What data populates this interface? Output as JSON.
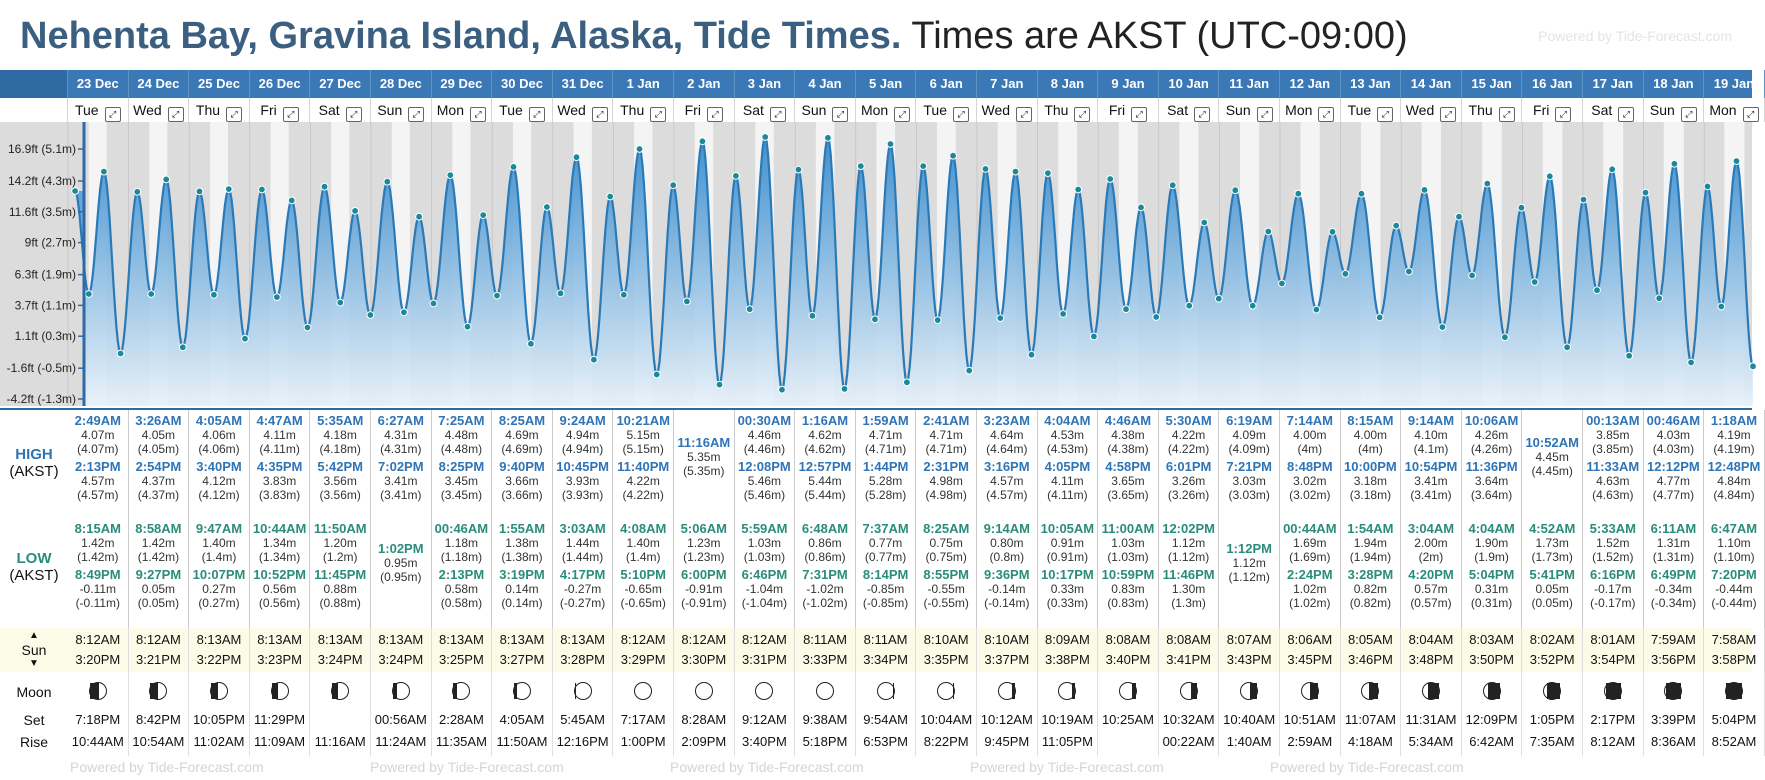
{
  "header": {
    "location": "Nehenta Bay, Gravina Island, Alaska, Tide Times.",
    "timezone": "Times are AKST (UTC-09:00)",
    "watermark": "Powered by Tide-Forecast.com"
  },
  "chart": {
    "y_labels": [
      "16.9ft (5.1m)",
      "14.2ft (4.3m)",
      "11.6ft (3.5m)",
      "9ft (2.7m)",
      "6.3ft (1.9m)",
      "3.7ft (1.1m)",
      "1.1ft (0.3m)",
      "-1.6ft (-0.5m)",
      "-4.2ft (-1.3m)"
    ],
    "y_values": [
      16.9,
      14.2,
      11.6,
      9,
      6.3,
      3.7,
      1.1,
      -1.6,
      -4.2
    ],
    "colors": {
      "fill_top": "#2e86cc",
      "fill_bottom": "#e8f2fa",
      "line": "#2a7ab8",
      "dot": "#1a8a99",
      "night": "#dcdcdc",
      "day": "#f4f4f4"
    }
  },
  "labels": {
    "high": "HIGH",
    "high_tz": "(AKST)",
    "low": "LOW",
    "low_tz": "(AKST)",
    "sun": "Sun",
    "moon": "Moon",
    "set": "Set",
    "rise": "Rise",
    "sun_up_icon": "▲",
    "sun_down_icon": "▼"
  },
  "days": [
    {
      "date": "23 Dec",
      "dow": "Tue",
      "high": [
        [
          "2:49AM",
          "4.07m",
          "(4.07m)"
        ],
        [
          "2:13PM",
          "4.57m",
          "(4.57m)"
        ]
      ],
      "low": [
        [
          "8:15AM",
          "1.42m",
          "(1.42m)"
        ],
        [
          "8:49PM",
          "-0.11m",
          "(-0.11m)"
        ]
      ],
      "sunrise": "8:12AM",
      "sunset": "3:20PM",
      "moonset": "7:18PM",
      "moonrise": "10:44AM",
      "phase": 0.45
    },
    {
      "date": "24 Dec",
      "dow": "Wed",
      "high": [
        [
          "3:26AM",
          "4.05m",
          "(4.05m)"
        ],
        [
          "2:54PM",
          "4.37m",
          "(4.37m)"
        ]
      ],
      "low": [
        [
          "8:58AM",
          "1.42m",
          "(1.42m)"
        ],
        [
          "9:27PM",
          "0.05m",
          "(0.05m)"
        ]
      ],
      "sunrise": "8:12AM",
      "sunset": "3:21PM",
      "moonset": "8:42PM",
      "moonrise": "10:54AM",
      "phase": 0.5
    },
    {
      "date": "25 Dec",
      "dow": "Thu",
      "high": [
        [
          "4:05AM",
          "4.06m",
          "(4.06m)"
        ],
        [
          "3:40PM",
          "4.12m",
          "(4.12m)"
        ]
      ],
      "low": [
        [
          "9:47AM",
          "1.40m",
          "(1.4m)"
        ],
        [
          "10:07PM",
          "0.27m",
          "(0.27m)"
        ]
      ],
      "sunrise": "8:13AM",
      "sunset": "3:22PM",
      "moonset": "10:05PM",
      "moonrise": "11:02AM",
      "phase": 0.55
    },
    {
      "date": "26 Dec",
      "dow": "Fri",
      "high": [
        [
          "4:47AM",
          "4.11m",
          "(4.11m)"
        ],
        [
          "4:35PM",
          "3.83m",
          "(3.83m)"
        ]
      ],
      "low": [
        [
          "10:44AM",
          "1.34m",
          "(1.34m)"
        ],
        [
          "10:52PM",
          "0.56m",
          "(0.56m)"
        ]
      ],
      "sunrise": "8:13AM",
      "sunset": "3:23PM",
      "moonset": "11:29PM",
      "moonrise": "11:09AM",
      "phase": 0.6
    },
    {
      "date": "27 Dec",
      "dow": "Sat",
      "high": [
        [
          "5:35AM",
          "4.18m",
          "(4.18m)"
        ],
        [
          "5:42PM",
          "3.56m",
          "(3.56m)"
        ]
      ],
      "low": [
        [
          "11:50AM",
          "1.20m",
          "(1.2m)"
        ],
        [
          "11:45PM",
          "0.88m",
          "(0.88m)"
        ]
      ],
      "sunrise": "8:13AM",
      "sunset": "3:24PM",
      "moonset": "",
      "moonrise": "11:16AM",
      "phase": 0.65
    },
    {
      "date": "28 Dec",
      "dow": "Sun",
      "high": [
        [
          "6:27AM",
          "4.31m",
          "(4.31m)"
        ],
        [
          "7:02PM",
          "3.41m",
          "(3.41m)"
        ]
      ],
      "low": [
        [
          "1:02PM",
          "0.95m",
          "(0.95m)"
        ]
      ],
      "sunrise": "8:13AM",
      "sunset": "3:24PM",
      "moonset": "00:56AM",
      "moonrise": "11:24AM",
      "phase": 0.72
    },
    {
      "date": "29 Dec",
      "dow": "Mon",
      "high": [
        [
          "7:25AM",
          "4.48m",
          "(4.48m)"
        ],
        [
          "8:25PM",
          "3.45m",
          "(3.45m)"
        ]
      ],
      "low": [
        [
          "00:46AM",
          "1.18m",
          "(1.18m)"
        ],
        [
          "2:13PM",
          "0.58m",
          "(0.58m)"
        ]
      ],
      "sunrise": "8:13AM",
      "sunset": "3:25PM",
      "moonset": "2:28AM",
      "moonrise": "11:35AM",
      "phase": 0.78
    },
    {
      "date": "30 Dec",
      "dow": "Tue",
      "high": [
        [
          "8:25AM",
          "4.69m",
          "(4.69m)"
        ],
        [
          "9:40PM",
          "3.66m",
          "(3.66m)"
        ]
      ],
      "low": [
        [
          "1:55AM",
          "1.38m",
          "(1.38m)"
        ],
        [
          "3:19PM",
          "0.14m",
          "(0.14m)"
        ]
      ],
      "sunrise": "8:13AM",
      "sunset": "3:27PM",
      "moonset": "4:05AM",
      "moonrise": "11:50AM",
      "phase": 0.84
    },
    {
      "date": "31 Dec",
      "dow": "Wed",
      "high": [
        [
          "9:24AM",
          "4.94m",
          "(4.94m)"
        ],
        [
          "10:45PM",
          "3.93m",
          "(3.93m)"
        ]
      ],
      "low": [
        [
          "3:03AM",
          "1.44m",
          "(1.44m)"
        ],
        [
          "4:17PM",
          "-0.27m",
          "(-0.27m)"
        ]
      ],
      "sunrise": "8:13AM",
      "sunset": "3:28PM",
      "moonset": "5:45AM",
      "moonrise": "12:16PM",
      "phase": 0.9
    },
    {
      "date": "1 Jan",
      "dow": "Thu",
      "high": [
        [
          "10:21AM",
          "5.15m",
          "(5.15m)"
        ],
        [
          "11:40PM",
          "4.22m",
          "(4.22m)"
        ]
      ],
      "low": [
        [
          "4:08AM",
          "1.40m",
          "(1.4m)"
        ],
        [
          "5:10PM",
          "-0.65m",
          "(-0.65m)"
        ]
      ],
      "sunrise": "8:12AM",
      "sunset": "3:29PM",
      "moonset": "7:17AM",
      "moonrise": "1:00PM",
      "phase": 1
    },
    {
      "date": "2 Jan",
      "dow": "Fri",
      "high": [
        [
          "11:16AM",
          "5.35m",
          "(5.35m)"
        ]
      ],
      "low": [
        [
          "5:06AM",
          "1.23m",
          "(1.23m)"
        ],
        [
          "6:00PM",
          "-0.91m",
          "(-0.91m)"
        ]
      ],
      "sunrise": "8:12AM",
      "sunset": "3:30PM",
      "moonset": "8:28AM",
      "moonrise": "2:09PM",
      "phase": 1
    },
    {
      "date": "3 Jan",
      "dow": "Sat",
      "high": [
        [
          "00:30AM",
          "4.46m",
          "(4.46m)"
        ],
        [
          "12:08PM",
          "5.46m",
          "(5.46m)"
        ]
      ],
      "low": [
        [
          "5:59AM",
          "1.03m",
          "(1.03m)"
        ],
        [
          "6:46PM",
          "-1.04m",
          "(-1.04m)"
        ]
      ],
      "sunrise": "8:12AM",
      "sunset": "3:31PM",
      "moonset": "9:12AM",
      "moonrise": "3:40PM",
      "phase": 1
    },
    {
      "date": "4 Jan",
      "dow": "Sun",
      "high": [
        [
          "1:16AM",
          "4.62m",
          "(4.62m)"
        ],
        [
          "12:57PM",
          "5.44m",
          "(5.44m)"
        ]
      ],
      "low": [
        [
          "6:48AM",
          "0.86m",
          "(0.86m)"
        ],
        [
          "7:31PM",
          "-1.02m",
          "(-1.02m)"
        ]
      ],
      "sunrise": "8:11AM",
      "sunset": "3:33PM",
      "moonset": "9:38AM",
      "moonrise": "5:18PM",
      "phase": 1
    },
    {
      "date": "5 Jan",
      "dow": "Mon",
      "high": [
        [
          "1:59AM",
          "4.71m",
          "(4.71m)"
        ],
        [
          "1:44PM",
          "5.28m",
          "(5.28m)"
        ]
      ],
      "low": [
        [
          "7:37AM",
          "0.77m",
          "(0.77m)"
        ],
        [
          "8:14PM",
          "-0.85m",
          "(-0.85m)"
        ]
      ],
      "sunrise": "8:11AM",
      "sunset": "3:34PM",
      "moonset": "9:54AM",
      "moonrise": "6:53PM",
      "phase": 0.95
    },
    {
      "date": "6 Jan",
      "dow": "Tue",
      "high": [
        [
          "2:41AM",
          "4.71m",
          "(4.71m)"
        ],
        [
          "2:31PM",
          "4.98m",
          "(4.98m)"
        ]
      ],
      "low": [
        [
          "8:25AM",
          "0.75m",
          "(0.75m)"
        ],
        [
          "8:55PM",
          "-0.55m",
          "(-0.55m)"
        ]
      ],
      "sunrise": "8:10AM",
      "sunset": "3:35PM",
      "moonset": "10:04AM",
      "moonrise": "8:22PM",
      "phase": 0.9
    },
    {
      "date": "7 Jan",
      "dow": "Wed",
      "high": [
        [
          "3:23AM",
          "4.64m",
          "(4.64m)"
        ],
        [
          "3:16PM",
          "4.57m",
          "(4.57m)"
        ]
      ],
      "low": [
        [
          "9:14AM",
          "0.80m",
          "(0.8m)"
        ],
        [
          "9:36PM",
          "-0.14m",
          "(-0.14m)"
        ]
      ],
      "sunrise": "8:10AM",
      "sunset": "3:37PM",
      "moonset": "10:12AM",
      "moonrise": "9:45PM",
      "phase": 0.84
    },
    {
      "date": "8 Jan",
      "dow": "Thu",
      "high": [
        [
          "4:04AM",
          "4.53m",
          "(4.53m)"
        ],
        [
          "4:05PM",
          "4.11m",
          "(4.11m)"
        ]
      ],
      "low": [
        [
          "10:05AM",
          "0.91m",
          "(0.91m)"
        ],
        [
          "10:17PM",
          "0.33m",
          "(0.33m)"
        ]
      ],
      "sunrise": "8:09AM",
      "sunset": "3:38PM",
      "moonset": "10:19AM",
      "moonrise": "11:05PM",
      "phase": 0.78
    },
    {
      "date": "9 Jan",
      "dow": "Fri",
      "high": [
        [
          "4:46AM",
          "4.38m",
          "(4.38m)"
        ],
        [
          "4:58PM",
          "3.65m",
          "(3.65m)"
        ]
      ],
      "low": [
        [
          "11:00AM",
          "1.03m",
          "(1.03m)"
        ],
        [
          "10:59PM",
          "0.83m",
          "(0.83m)"
        ]
      ],
      "sunrise": "8:08AM",
      "sunset": "3:40PM",
      "moonset": "10:25AM",
      "moonrise": "",
      "phase": 0.72
    },
    {
      "date": "10 Jan",
      "dow": "Sat",
      "high": [
        [
          "5:30AM",
          "4.22m",
          "(4.22m)"
        ],
        [
          "6:01PM",
          "3.26m",
          "(3.26m)"
        ]
      ],
      "low": [
        [
          "12:02PM",
          "1.12m",
          "(1.12m)"
        ],
        [
          "11:46PM",
          "1.30m",
          "(1.3m)"
        ]
      ],
      "sunrise": "8:08AM",
      "sunset": "3:41PM",
      "moonset": "10:32AM",
      "moonrise": "00:22AM",
      "phase": 0.66
    },
    {
      "date": "11 Jan",
      "dow": "Sun",
      "high": [
        [
          "6:19AM",
          "4.09m",
          "(4.09m)"
        ],
        [
          "7:21PM",
          "3.03m",
          "(3.03m)"
        ]
      ],
      "low": [
        [
          "1:12PM",
          "1.12m",
          "(1.12m)"
        ]
      ],
      "sunrise": "8:07AM",
      "sunset": "3:43PM",
      "moonset": "10:40AM",
      "moonrise": "1:40AM",
      "phase": 0.58
    },
    {
      "date": "12 Jan",
      "dow": "Mon",
      "high": [
        [
          "7:14AM",
          "4.00m",
          "(4m)"
        ],
        [
          "8:48PM",
          "3.02m",
          "(3.02m)"
        ]
      ],
      "low": [
        [
          "00:44AM",
          "1.69m",
          "(1.69m)"
        ],
        [
          "2:24PM",
          "1.02m",
          "(1.02m)"
        ]
      ],
      "sunrise": "8:06AM",
      "sunset": "3:45PM",
      "moonset": "10:51AM",
      "moonrise": "2:59AM",
      "phase": 0.5
    },
    {
      "date": "13 Jan",
      "dow": "Tue",
      "high": [
        [
          "8:15AM",
          "4.00m",
          "(4m)"
        ],
        [
          "10:00PM",
          "3.18m",
          "(3.18m)"
        ]
      ],
      "low": [
        [
          "1:54AM",
          "1.94m",
          "(1.94m)"
        ],
        [
          "3:28PM",
          "0.82m",
          "(0.82m)"
        ]
      ],
      "sunrise": "8:05AM",
      "sunset": "3:46PM",
      "moonset": "11:07AM",
      "moonrise": "4:18AM",
      "phase": 0.42
    },
    {
      "date": "14 Jan",
      "dow": "Wed",
      "high": [
        [
          "9:14AM",
          "4.10m",
          "(4.1m)"
        ],
        [
          "10:54PM",
          "3.41m",
          "(3.41m)"
        ]
      ],
      "low": [
        [
          "3:04AM",
          "2.00m",
          "(2m)"
        ],
        [
          "4:20PM",
          "0.57m",
          "(0.57m)"
        ]
      ],
      "sunrise": "8:04AM",
      "sunset": "3:48PM",
      "moonset": "11:31AM",
      "moonrise": "5:34AM",
      "phase": 0.34
    },
    {
      "date": "15 Jan",
      "dow": "Thu",
      "high": [
        [
          "10:06AM",
          "4.26m",
          "(4.26m)"
        ],
        [
          "11:36PM",
          "3.64m",
          "(3.64m)"
        ]
      ],
      "low": [
        [
          "4:04AM",
          "1.90m",
          "(1.9m)"
        ],
        [
          "5:04PM",
          "0.31m",
          "(0.31m)"
        ]
      ],
      "sunrise": "8:03AM",
      "sunset": "3:50PM",
      "moonset": "12:09PM",
      "moonrise": "6:42AM",
      "phase": 0.25
    },
    {
      "date": "16 Jan",
      "dow": "Fri",
      "high": [
        [
          "10:52AM",
          "4.45m",
          "(4.45m)"
        ]
      ],
      "low": [
        [
          "4:52AM",
          "1.73m",
          "(1.73m)"
        ],
        [
          "5:41PM",
          "0.05m",
          "(0.05m)"
        ]
      ],
      "sunrise": "8:02AM",
      "sunset": "3:52PM",
      "moonset": "1:05PM",
      "moonrise": "7:35AM",
      "phase": 0.15
    },
    {
      "date": "17 Jan",
      "dow": "Sat",
      "high": [
        [
          "00:13AM",
          "3.85m",
          "(3.85m)"
        ],
        [
          "11:33AM",
          "4.63m",
          "(4.63m)"
        ]
      ],
      "low": [
        [
          "5:33AM",
          "1.52m",
          "(1.52m)"
        ],
        [
          "6:16PM",
          "-0.17m",
          "(-0.17m)"
        ]
      ],
      "sunrise": "8:01AM",
      "sunset": "3:54PM",
      "moonset": "2:17PM",
      "moonrise": "8:12AM",
      "phase": 0.08
    },
    {
      "date": "18 Jan",
      "dow": "Sun",
      "high": [
        [
          "00:46AM",
          "4.03m",
          "(4.03m)"
        ],
        [
          "12:12PM",
          "4.77m",
          "(4.77m)"
        ]
      ],
      "low": [
        [
          "6:11AM",
          "1.31m",
          "(1.31m)"
        ],
        [
          "6:49PM",
          "-0.34m",
          "(-0.34m)"
        ]
      ],
      "sunrise": "7:59AM",
      "sunset": "3:56PM",
      "moonset": "3:39PM",
      "moonrise": "8:36AM",
      "phase": 0.04
    },
    {
      "date": "19 Jan",
      "dow": "Mon",
      "high": [
        [
          "1:18AM",
          "4.19m",
          "(4.19m)"
        ],
        [
          "12:48PM",
          "4.84m",
          "(4.84m)"
        ]
      ],
      "low": [
        [
          "6:47AM",
          "1.10m",
          "(1.10m)"
        ],
        [
          "7:20PM",
          "-0.44m",
          "(-0.44m)"
        ]
      ],
      "sunrise": "7:58AM",
      "sunset": "3:58PM",
      "moonset": "5:04PM",
      "moonrise": "8:52AM",
      "phase": 0.02
    }
  ]
}
